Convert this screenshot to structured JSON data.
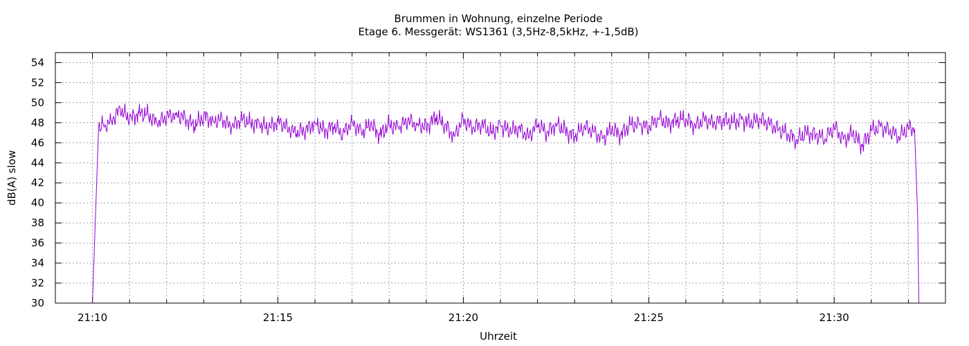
{
  "chart_data": {
    "type": "line",
    "title": "Brummen in Wohnung, einzelne Periode",
    "subtitle": "Etage 6. Messgerät: WS1361 (3,5Hz-8,5kHz, +-1,5dB)",
    "xlabel": "Uhrzeit",
    "ylabel": "dB(A) slow",
    "x_unit": "time (HH:MM)",
    "xlim": [
      "21:09",
      "21:33"
    ],
    "ylim": [
      30,
      55
    ],
    "x_ticks": [
      "21:10",
      "21:15",
      "21:20",
      "21:25",
      "21:30"
    ],
    "y_ticks": [
      "30",
      "32",
      "34",
      "36",
      "38",
      "40",
      "42",
      "44",
      "46",
      "48",
      "50",
      "52",
      "54"
    ],
    "grid": true,
    "legend": "none",
    "series_color": "#9400d3",
    "series": [
      {
        "x": [
          "21:10:00",
          "21:10:05",
          "21:10:10",
          "21:10:20",
          "21:10:30",
          "21:10:45",
          "21:11:00",
          "21:11:15",
          "21:11:30",
          "21:11:45",
          "21:12:00",
          "21:12:15",
          "21:12:30",
          "21:12:45",
          "21:13:00",
          "21:13:15",
          "21:13:30",
          "21:13:45",
          "21:14:00",
          "21:14:15",
          "21:14:30",
          "21:14:45",
          "21:15:00",
          "21:15:15",
          "21:15:30",
          "21:15:45",
          "21:16:00",
          "21:16:15",
          "21:16:30",
          "21:16:45",
          "21:17:00",
          "21:17:15",
          "21:17:30",
          "21:17:45",
          "21:18:00",
          "21:18:15",
          "21:18:30",
          "21:18:45",
          "21:19:00",
          "21:19:15",
          "21:19:30",
          "21:19:45",
          "21:20:00",
          "21:20:15",
          "21:20:30",
          "21:20:45",
          "21:21:00",
          "21:21:15",
          "21:21:30",
          "21:21:45",
          "21:22:00",
          "21:22:15",
          "21:22:30",
          "21:22:45",
          "21:23:00",
          "21:23:15",
          "21:23:30",
          "21:23:45",
          "21:24:00",
          "21:24:15",
          "21:24:30",
          "21:24:45",
          "21:25:00",
          "21:25:15",
          "21:25:30",
          "21:25:45",
          "21:26:00",
          "21:26:15",
          "21:26:30",
          "21:26:45",
          "21:27:00",
          "21:27:15",
          "21:27:30",
          "21:27:45",
          "21:28:00",
          "21:28:15",
          "21:28:30",
          "21:28:45",
          "21:29:00",
          "21:29:15",
          "21:29:30",
          "21:29:45",
          "21:30:00",
          "21:30:15",
          "21:30:30",
          "21:30:45",
          "21:31:00",
          "21:31:15",
          "21:31:30",
          "21:31:45",
          "21:32:00",
          "21:32:10",
          "21:32:15",
          "21:32:17"
        ],
        "y": [
          30,
          38.8,
          47.6,
          47.8,
          48.2,
          49.3,
          48.3,
          49.0,
          48.8,
          47.9,
          48.6,
          48.8,
          48.5,
          47.6,
          48.7,
          48.2,
          48.3,
          47.5,
          48.4,
          48.0,
          47.8,
          47.4,
          48.2,
          47.5,
          46.9,
          47.3,
          48.0,
          47.2,
          47.6,
          46.9,
          48.1,
          47.0,
          47.8,
          46.8,
          47.8,
          47.5,
          48.2,
          47.8,
          47.6,
          48.5,
          47.8,
          46.7,
          48.3,
          47.4,
          47.9,
          47.0,
          47.7,
          47.1,
          47.5,
          46.6,
          47.8,
          47.0,
          47.9,
          47.2,
          46.6,
          47.6,
          47.2,
          46.4,
          47.3,
          46.8,
          47.8,
          47.8,
          47.5,
          48.5,
          47.9,
          48.2,
          48.4,
          47.7,
          48.3,
          47.9,
          48.3,
          48.0,
          48.3,
          47.9,
          48.4,
          47.9,
          47.3,
          46.9,
          46.3,
          47.0,
          46.8,
          46.4,
          47.6,
          46.3,
          46.9,
          45.7,
          47.2,
          47.6,
          47.2,
          46.6,
          47.5,
          47.4,
          38.8,
          30
        ]
      }
    ]
  }
}
